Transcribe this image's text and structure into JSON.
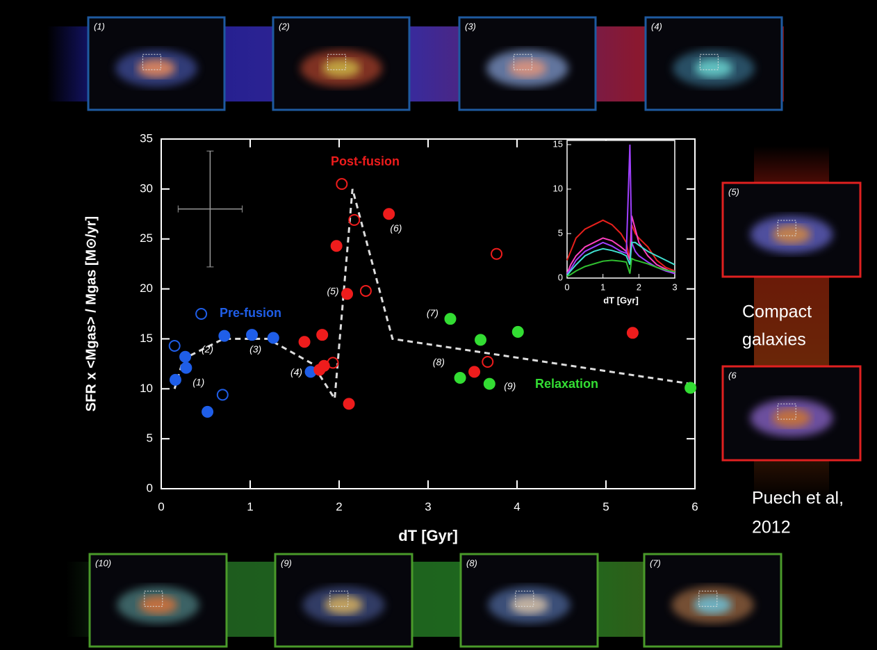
{
  "chart_data": [
    {
      "type": "scatter",
      "x_label": "dT [Gyr]",
      "y_label": "SFR x <Mgas> / Mgas  [M⊙/yr]",
      "xlim": [
        0,
        6
      ],
      "ylim": [
        0,
        35
      ],
      "xticks": [
        0,
        1,
        2,
        3,
        4,
        5,
        6
      ],
      "yticks": [
        0,
        5,
        10,
        15,
        20,
        25,
        30,
        35
      ],
      "series": [
        {
          "name": "Pre-fusion",
          "color": "#1f5ee8",
          "filled": true,
          "x": [
            0.16,
            0.27,
            0.28,
            0.52,
            0.71,
            1.02,
            1.26,
            1.68
          ],
          "y": [
            10.9,
            13.2,
            12.1,
            7.7,
            15.3,
            15.4,
            15.1,
            11.7
          ]
        },
        {
          "color": "#1f5ee8",
          "filled": false,
          "x": [
            0.15,
            0.45,
            0.69
          ],
          "y": [
            14.3,
            17.5,
            9.4
          ]
        },
        {
          "name": "Post-fusion",
          "color": "#ee1c1c",
          "filled": true,
          "x": [
            1.61,
            1.81,
            1.78,
            1.83,
            1.97,
            2.09,
            2.11,
            2.56,
            5.3,
            3.52
          ],
          "y": [
            14.7,
            15.4,
            11.9,
            12.3,
            24.3,
            19.5,
            8.5,
            27.5,
            15.6,
            11.7
          ]
        },
        {
          "color": "#ee1c1c",
          "filled": false,
          "x": [
            2.03,
            2.17,
            2.3,
            1.93,
            3.67,
            3.77
          ],
          "y": [
            30.5,
            26.9,
            19.8,
            12.6,
            12.7,
            23.5
          ]
        },
        {
          "name": "Relaxation",
          "color": "#33dd33",
          "filled": true,
          "x": [
            3.25,
            3.59,
            4.01,
            3.36,
            3.69,
            5.95
          ],
          "y": [
            17.0,
            14.9,
            15.7,
            11.1,
            10.5,
            10.1
          ]
        }
      ],
      "trend": {
        "color": "#dddddd",
        "x": [
          0.15,
          0.25,
          0.7,
          1.2,
          1.7,
          1.95,
          2.15,
          2.6,
          5.95
        ],
        "y": [
          10,
          13,
          15,
          15,
          12.5,
          9,
          30,
          15,
          10.5
        ]
      },
      "error_bar": {
        "x": 0.55,
        "y": 28,
        "xerr": 0.36,
        "yerr": 5.8
      },
      "annotations": [
        {
          "text": "(1)",
          "x": 0.42,
          "y": 10.6
        },
        {
          "text": "(2)",
          "x": 0.52,
          "y": 13.9
        },
        {
          "text": "(3)",
          "x": 1.06,
          "y": 13.9
        },
        {
          "text": "(4)",
          "x": 1.52,
          "y": 11.6
        },
        {
          "text": "(5)",
          "x": 1.93,
          "y": 19.7
        },
        {
          "text": "(6)",
          "x": 2.64,
          "y": 26.0
        },
        {
          "text": "(7)",
          "x": 3.05,
          "y": 17.5
        },
        {
          "text": "(8)",
          "x": 3.12,
          "y": 12.6
        },
        {
          "text": "(9)",
          "x": 3.92,
          "y": 10.2
        }
      ]
    },
    {
      "type": "line",
      "x_label": "dT [Gyr]",
      "xlim": [
        0,
        3
      ],
      "ylim": [
        0,
        15
      ],
      "xticks": [
        0,
        1,
        2,
        3
      ],
      "yticks": [
        0,
        5,
        10,
        15
      ],
      "x": [
        0,
        0.1,
        0.25,
        0.5,
        0.75,
        1.0,
        1.25,
        1.5,
        1.65,
        1.75,
        1.8,
        1.9,
        2.0,
        2.25,
        2.5,
        2.75,
        3.0
      ],
      "series": [
        {
          "color": "#e8201c",
          "values": [
            2,
            3,
            4.5,
            5.5,
            6,
            6.5,
            6,
            5,
            4,
            2,
            6,
            5,
            4.5,
            3.5,
            2,
            1.2,
            0.8
          ]
        },
        {
          "color": "#ff40c0",
          "values": [
            0.5,
            1.5,
            2.5,
            3.5,
            4,
            4.5,
            4.2,
            3.5,
            3,
            2,
            7,
            5.5,
            4,
            2.5,
            1.5,
            1,
            0.5
          ]
        },
        {
          "color": "#a040ff",
          "values": [
            0.5,
            1,
            2,
            3,
            3.5,
            4,
            3.6,
            3,
            2.8,
            15,
            4,
            3,
            2.5,
            1.8,
            1.2,
            0.8,
            0.5
          ]
        },
        {
          "color": "#40e0d0",
          "values": [
            0.3,
            0.8,
            1.5,
            2.5,
            3,
            3.3,
            3.1,
            2.8,
            2.5,
            1.5,
            4,
            4,
            3.7,
            3,
            2.5,
            2,
            1.5
          ]
        },
        {
          "color": "#30c030",
          "values": [
            0.2,
            0.4,
            0.8,
            1.3,
            1.6,
            1.9,
            2,
            1.9,
            1.8,
            0.5,
            2.2,
            2,
            1.9,
            1.6,
            1.2,
            0.9,
            0.7
          ]
        }
      ]
    }
  ],
  "panels": {
    "top": [
      "(1)",
      "(2)",
      "(3)",
      "(4)"
    ],
    "right": [
      "(5)",
      "(6"
    ],
    "bottom": [
      "(10)",
      "(9)",
      "(8)",
      "(7)"
    ]
  },
  "side_text": {
    "compact": [
      "Compact",
      "galaxies"
    ],
    "citation": [
      "Puech et al,",
      "2012"
    ]
  }
}
